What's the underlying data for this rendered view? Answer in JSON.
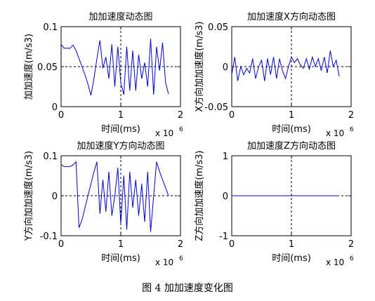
{
  "caption": "图 4 加加速度变化图",
  "chart_data": [
    {
      "type": "line",
      "title": "加加速度动态图",
      "xlabel": "时间(ms)",
      "ylabel": "加加速度(m/s3)",
      "x_exponent_label": "x 10",
      "x_exponent": "6",
      "xlim": [
        0,
        2
      ],
      "ylim": [
        0,
        0.1
      ],
      "xticks": [
        "0",
        "1",
        "2"
      ],
      "yticks": [
        "0",
        "0.05",
        "0.1"
      ],
      "crosshair": {
        "x": 1,
        "y": 0.05
      },
      "series": [
        {
          "color": "#0000cc",
          "x": [
            0,
            0.05,
            0.1,
            0.15,
            0.2,
            0.25,
            0.3,
            0.35,
            0.4,
            0.45,
            0.5,
            0.55,
            0.6,
            0.65,
            0.7,
            0.75,
            0.8,
            0.85,
            0.9,
            0.95,
            1.0,
            1.05,
            1.1,
            1.15,
            1.2,
            1.25,
            1.3,
            1.35,
            1.4,
            1.45,
            1.5,
            1.55,
            1.6,
            1.65,
            1.7,
            1.75,
            1.8
          ],
          "y": [
            0.078,
            0.073,
            0.073,
            0.073,
            0.077,
            0.07,
            0.06,
            0.05,
            0.04,
            0.028,
            0.014,
            0.035,
            0.06,
            0.083,
            0.048,
            0.062,
            0.035,
            0.078,
            0.025,
            0.075,
            0.03,
            0.015,
            0.075,
            0.02,
            0.07,
            0.02,
            0.065,
            0.035,
            0.055,
            0.025,
            0.085,
            0.015,
            0.075,
            0.045,
            0.08,
            0.03,
            0.016
          ]
        }
      ]
    },
    {
      "type": "line",
      "title": "加加速度X方向动态图",
      "xlabel": "时间(ms)",
      "ylabel": "X方向加加速度(m/s3)",
      "x_exponent_label": "x 10",
      "x_exponent": "6",
      "xlim": [
        0,
        2
      ],
      "ylim": [
        -0.05,
        0.05
      ],
      "xticks": [
        "0",
        "1",
        "2"
      ],
      "yticks": [
        "-0.05",
        "0",
        "0.05"
      ],
      "crosshair": {
        "x": 1,
        "y": 0
      },
      "series": [
        {
          "color": "#0000cc",
          "x": [
            0,
            0.05,
            0.1,
            0.15,
            0.2,
            0.25,
            0.3,
            0.35,
            0.4,
            0.45,
            0.5,
            0.55,
            0.6,
            0.65,
            0.7,
            0.75,
            0.8,
            0.85,
            0.9,
            0.95,
            1.0,
            1.05,
            1.1,
            1.15,
            1.2,
            1.25,
            1.3,
            1.35,
            1.4,
            1.45,
            1.5,
            1.55,
            1.6,
            1.65,
            1.7,
            1.75,
            1.8
          ],
          "y": [
            -0.01,
            0.012,
            -0.018,
            0.0,
            -0.01,
            -0.002,
            -0.008,
            0.01,
            -0.015,
            0.0,
            0.008,
            -0.018,
            0.01,
            -0.01,
            0.012,
            -0.015,
            0.01,
            -0.005,
            -0.015,
            0.0,
            0.012,
            0.005,
            0.01,
            0.002,
            -0.002,
            0.01,
            -0.003,
            0.012,
            0.0,
            0.01,
            -0.005,
            0.012,
            -0.008,
            0.02,
            0.0,
            0.008,
            -0.012
          ]
        }
      ]
    },
    {
      "type": "line",
      "title": "加加速度Y方向动态图",
      "xlabel": "时间(ms)",
      "ylabel": "Y方向加加速度(m/s3)",
      "x_exponent_label": "x 10",
      "x_exponent": "6",
      "xlim": [
        0,
        2
      ],
      "ylim": [
        -0.1,
        0.1
      ],
      "xticks": [
        "0",
        "1",
        "2"
      ],
      "yticks": [
        "-0.1",
        "0",
        "0.1"
      ],
      "crosshair": {
        "x": 1,
        "y": 0
      },
      "series": [
        {
          "color": "#0000cc",
          "x": [
            0,
            0.05,
            0.1,
            0.15,
            0.2,
            0.25,
            0.3,
            0.35,
            0.4,
            0.45,
            0.5,
            0.55,
            0.6,
            0.65,
            0.7,
            0.75,
            0.8,
            0.85,
            0.9,
            0.95,
            1.0,
            1.05,
            1.1,
            1.15,
            1.2,
            1.25,
            1.3,
            1.35,
            1.4,
            1.45,
            1.5,
            1.55,
            1.6,
            1.65,
            1.7,
            1.75,
            1.8
          ],
          "y": [
            0.078,
            0.073,
            0.073,
            0.073,
            0.077,
            0.085,
            -0.08,
            -0.06,
            -0.03,
            0.0,
            0.03,
            0.06,
            0.085,
            -0.045,
            0.04,
            -0.04,
            0.06,
            -0.05,
            0.0,
            0.07,
            -0.07,
            0.05,
            -0.085,
            0.06,
            -0.03,
            0.04,
            -0.05,
            0.03,
            -0.065,
            0.06,
            -0.09,
            0.0,
            0.085,
            0.06,
            0.04,
            0.02,
            0.0
          ]
        }
      ]
    },
    {
      "type": "line",
      "title": "加加速度Z方向动态图",
      "xlabel": "时间(ms)",
      "ylabel": "Z方向加加速度(m/s3)",
      "x_exponent_label": "x 10",
      "x_exponent": "6",
      "xlim": [
        0,
        2
      ],
      "ylim": [
        -1,
        1
      ],
      "xticks": [
        "0",
        "1",
        "2"
      ],
      "yticks": [
        "-1",
        "0",
        "1"
      ],
      "crosshair": {
        "x": 1,
        "y": 0
      },
      "series": [
        {
          "color": "#0000cc",
          "x": [
            0,
            1.8
          ],
          "y": [
            0,
            0
          ]
        }
      ]
    }
  ]
}
